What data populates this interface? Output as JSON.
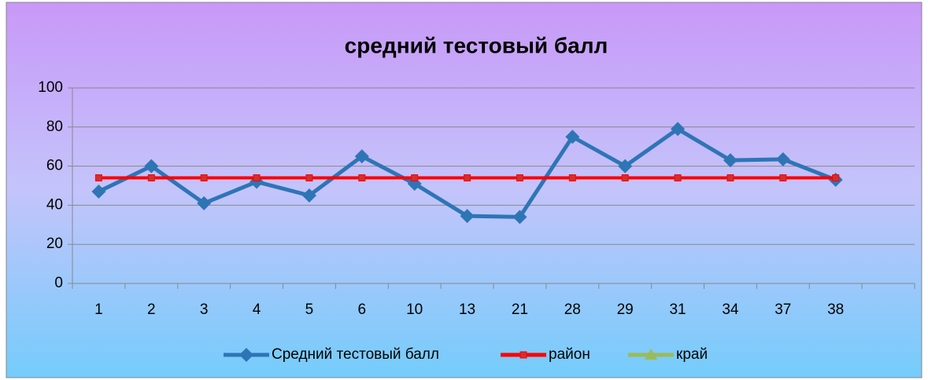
{
  "chart_data": {
    "type": "line",
    "title": "средний тестовый балл",
    "categories": [
      "1",
      "2",
      "3",
      "4",
      "5",
      "6",
      "10",
      "13",
      "21",
      "28",
      "29",
      "31",
      "34",
      "37",
      "38",
      null
    ],
    "series": [
      {
        "name": "Средний тестовый балл",
        "color": "#2e75b6",
        "marker": "diamond",
        "values": [
          47,
          60,
          41,
          52,
          45,
          65,
          51,
          34.5,
          34,
          75,
          60,
          79,
          63,
          63.5,
          53,
          null
        ]
      },
      {
        "name": "район",
        "color": "#ff0000",
        "marker": "square",
        "values": [
          54,
          54,
          54,
          54,
          54,
          54,
          54,
          54,
          54,
          54,
          54,
          54,
          54,
          54,
          54,
          null
        ]
      },
      {
        "name": "край",
        "color": "#9bbb59",
        "marker": "triangle",
        "values": [
          null,
          null,
          null,
          null,
          null,
          null,
          null,
          null,
          null,
          null,
          null,
          null,
          null,
          null,
          null,
          null
        ]
      }
    ],
    "ylim": [
      0,
      100
    ],
    "yticks": [
      0,
      20,
      40,
      60,
      80,
      100
    ],
    "grid": true,
    "legend": "bottom"
  }
}
